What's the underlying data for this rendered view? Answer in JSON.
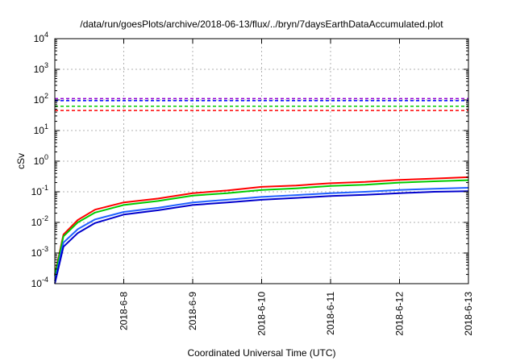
{
  "chart_data": {
    "type": "line",
    "title": "/data/run/goesPlots/archive/2018-06-13/flux/../bryn/7daysEarthDataAccumulated.plot",
    "xlabel": "Coordinated Universal Time (UTC)",
    "ylabel": "cSv",
    "x_ticks": [
      "2018-6-8",
      "2018-6-9",
      "2018-6-10",
      "2018-6-11",
      "2018-6-12",
      "2018-6-13"
    ],
    "xlim": [
      "2018-6-7",
      "2018-6-13"
    ],
    "y_scale": "log",
    "ylim": [
      0.0001,
      10000
    ],
    "y_ticks": [
      {
        "value": 0.0001,
        "base": "10",
        "exp": "-4"
      },
      {
        "value": 0.001,
        "base": "10",
        "exp": "-3"
      },
      {
        "value": 0.01,
        "base": "10",
        "exp": "-2"
      },
      {
        "value": 0.1,
        "base": "10",
        "exp": "-1"
      },
      {
        "value": 1,
        "base": "10",
        "exp": "0"
      },
      {
        "value": 10,
        "base": "10",
        "exp": "1"
      },
      {
        "value": 100,
        "base": "10",
        "exp": "2"
      },
      {
        "value": 1000,
        "base": "10",
        "exp": "3"
      },
      {
        "value": 10000,
        "base": "10",
        "exp": "4"
      }
    ],
    "grid": true,
    "thresholds": [
      {
        "y": 110,
        "color": "#9400d3"
      },
      {
        "y": 95,
        "color": "#0000ff"
      },
      {
        "y": 62,
        "color": "#00cc00"
      },
      {
        "y": 45,
        "color": "#ff0000"
      }
    ],
    "series": [
      {
        "color": "#ff0000",
        "points": [
          [
            "2018-6-7",
            0.0002
          ],
          [
            "2018-6-7 03:00",
            0.004
          ],
          [
            "2018-6-7 08:00",
            0.012
          ],
          [
            "2018-6-7 14:00",
            0.026
          ],
          [
            "2018-6-8",
            0.045
          ],
          [
            "2018-6-8 12:00",
            0.06
          ],
          [
            "2018-6-9",
            0.09
          ],
          [
            "2018-6-9 12:00",
            0.11
          ],
          [
            "2018-6-10",
            0.145
          ],
          [
            "2018-6-10 12:00",
            0.16
          ],
          [
            "2018-6-11",
            0.19
          ],
          [
            "2018-6-11 12:00",
            0.21
          ],
          [
            "2018-6-12",
            0.245
          ],
          [
            "2018-6-12 12:00",
            0.27
          ],
          [
            "2018-6-13",
            0.3
          ]
        ]
      },
      {
        "color": "#00cc00",
        "points": [
          [
            "2018-6-7",
            0.00018
          ],
          [
            "2018-6-7 03:00",
            0.0035
          ],
          [
            "2018-6-7 08:00",
            0.01
          ],
          [
            "2018-6-7 14:00",
            0.021
          ],
          [
            "2018-6-8",
            0.037
          ],
          [
            "2018-6-8 12:00",
            0.05
          ],
          [
            "2018-6-9",
            0.075
          ],
          [
            "2018-6-9 12:00",
            0.09
          ],
          [
            "2018-6-10",
            0.115
          ],
          [
            "2018-6-10 12:00",
            0.13
          ],
          [
            "2018-6-11",
            0.155
          ],
          [
            "2018-6-11 12:00",
            0.17
          ],
          [
            "2018-6-12",
            0.2
          ],
          [
            "2018-6-12 12:00",
            0.22
          ],
          [
            "2018-6-13",
            0.24
          ]
        ]
      },
      {
        "color": "#2060ff",
        "points": [
          [
            "2018-6-7",
            0.00012
          ],
          [
            "2018-6-7 03:00",
            0.0022
          ],
          [
            "2018-6-7 08:00",
            0.006
          ],
          [
            "2018-6-7 14:00",
            0.0125
          ],
          [
            "2018-6-8",
            0.022
          ],
          [
            "2018-6-8 12:00",
            0.03
          ],
          [
            "2018-6-9",
            0.045
          ],
          [
            "2018-6-9 12:00",
            0.055
          ],
          [
            "2018-6-10",
            0.068
          ],
          [
            "2018-6-10 12:00",
            0.078
          ],
          [
            "2018-6-11",
            0.09
          ],
          [
            "2018-6-11 12:00",
            0.1
          ],
          [
            "2018-6-12",
            0.115
          ],
          [
            "2018-6-12 12:00",
            0.125
          ],
          [
            "2018-6-13",
            0.135
          ]
        ]
      },
      {
        "color": "#0000cc",
        "points": [
          [
            "2018-6-7",
            0.0001
          ],
          [
            "2018-6-7 03:00",
            0.0016
          ],
          [
            "2018-6-7 08:00",
            0.0045
          ],
          [
            "2018-6-7 14:00",
            0.0095
          ],
          [
            "2018-6-8",
            0.018
          ],
          [
            "2018-6-8 12:00",
            0.025
          ],
          [
            "2018-6-9",
            0.037
          ],
          [
            "2018-6-9 12:00",
            0.045
          ],
          [
            "2018-6-10",
            0.055
          ],
          [
            "2018-6-10 12:00",
            0.063
          ],
          [
            "2018-6-11",
            0.073
          ],
          [
            "2018-6-11 12:00",
            0.08
          ],
          [
            "2018-6-12",
            0.09
          ],
          [
            "2018-6-12 12:00",
            0.1
          ],
          [
            "2018-6-13",
            0.105
          ]
        ]
      }
    ]
  }
}
